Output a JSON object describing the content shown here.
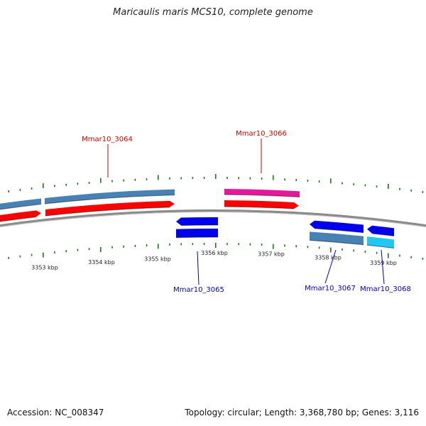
{
  "title": "Maricaulis maris MCS10, complete genome",
  "footer": {
    "accession": "Accession: NC_008347",
    "summary": "Topology: circular; Length: 3,368,780 bp; Genes: 3,116"
  },
  "ticks": [
    {
      "label": "3353 kbp"
    },
    {
      "label": "3354 kbp"
    },
    {
      "label": "3355 kbp"
    },
    {
      "label": "3356 kbp"
    },
    {
      "label": "3357 kbp"
    },
    {
      "label": "3358 kbp"
    },
    {
      "label": "3359 kbp"
    }
  ],
  "genes": [
    {
      "label": "Mmar10_3064",
      "strand": "forward",
      "color": "#cc0000"
    },
    {
      "label": "Mmar10_3066",
      "strand": "forward",
      "color": "#cc0000"
    },
    {
      "label": "Mmar10_3065",
      "strand": "reverse",
      "color": "#0000aa"
    },
    {
      "label": "Mmar10_3067",
      "strand": "reverse",
      "color": "#0000aa"
    },
    {
      "label": "Mmar10_3068",
      "strand": "reverse",
      "color": "#0000aa"
    }
  ],
  "colors": {
    "backbone": "#8a8a8a",
    "tick": "#1a7a1a",
    "forward_cds": "#ff0000",
    "forward_gene": "#4682b4",
    "pink_gene": "#e8169a",
    "reverse_cds": "#0000ee",
    "reverse_gene_steel": "#4682b4",
    "reverse_gene_cyan": "#1ec8f0"
  }
}
